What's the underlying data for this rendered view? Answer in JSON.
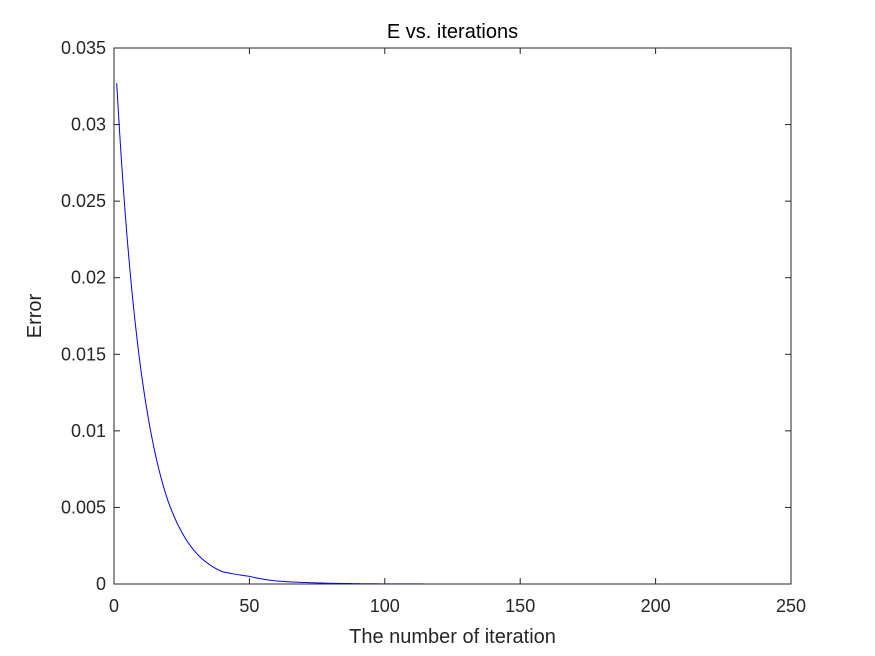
{
  "chart_data": {
    "type": "line",
    "title": "E vs. iterations",
    "xlabel": "The number of iteration",
    "ylabel": "Error",
    "xlim": [
      0,
      250
    ],
    "ylim": [
      0,
      0.035
    ],
    "x_ticks": [
      0,
      50,
      100,
      150,
      200,
      250
    ],
    "x_tick_labels": [
      "0",
      "50",
      "100",
      "150",
      "200",
      "250"
    ],
    "y_ticks": [
      0,
      0.005,
      0.01,
      0.015,
      0.02,
      0.025,
      0.03,
      0.035
    ],
    "y_tick_labels": [
      "0",
      "0.005",
      "0.01",
      "0.015",
      "0.02",
      "0.025",
      "0.03",
      "0.035"
    ],
    "grid": false,
    "box": true,
    "series": [
      {
        "color": "#0000ff",
        "x": [
          1,
          5,
          10,
          15,
          20,
          25,
          30,
          35,
          40,
          50,
          60,
          70,
          80,
          100,
          120,
          150,
          200,
          250
        ],
        "y": [
          0.0327,
          0.0223,
          0.0139,
          0.0087,
          0.0054,
          0.0034,
          0.0021,
          0.0013,
          0.0008,
          0.0005,
          0.0002,
          0.0001,
          5e-05,
          1e-05,
          3e-06,
          5e-07,
          0.0,
          0.0
        ]
      }
    ]
  }
}
